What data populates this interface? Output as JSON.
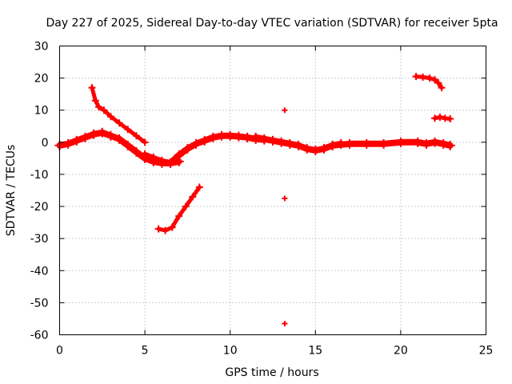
{
  "chart_data": {
    "type": "scatter",
    "title": "Day 227 of 2025, Sidereal Day-to-day VTEC variation (SDTVAR) for receiver 5pta",
    "xlabel": "GPS time / hours",
    "ylabel": "SDTVAR / TECUs",
    "xlim": [
      0,
      25
    ],
    "ylim": [
      -60,
      30
    ],
    "xticks": [
      0,
      5,
      10,
      15,
      20,
      25
    ],
    "yticks": [
      30,
      20,
      10,
      0,
      -10,
      -20,
      -30,
      -40,
      -50,
      -60
    ],
    "grid": true,
    "marker": "plus",
    "color": "#ff0000",
    "series": [
      {
        "name": "arc-main-0-4",
        "style": "band",
        "x": [
          0.0,
          0.5,
          1.0,
          1.5,
          2.0,
          2.5,
          3.0,
          3.5,
          4.0,
          4.5,
          5.0,
          5.5,
          6.0,
          6.5,
          7.0
        ],
        "y": [
          -1.0,
          -0.5,
          0.5,
          1.5,
          2.5,
          3.0,
          2.0,
          1.0,
          -1.0,
          -3.0,
          -5.0,
          -6.0,
          -6.5,
          -6.5,
          -6.0
        ]
      },
      {
        "name": "arc-rise-6-12",
        "style": "band",
        "x": [
          5.0,
          5.5,
          6.0,
          6.5,
          7.0,
          7.5,
          8.0,
          8.5,
          9.0,
          9.5,
          10.0,
          10.5,
          11.0,
          11.5,
          12.0
        ],
        "y": [
          -4.0,
          -5.0,
          -6.0,
          -6.5,
          -4.0,
          -2.0,
          -0.5,
          0.5,
          1.5,
          2.0,
          2.0,
          1.8,
          1.5,
          1.0,
          0.8
        ]
      },
      {
        "name": "arc-mid-12-16",
        "style": "band",
        "x": [
          11.5,
          12.0,
          12.5,
          13.0,
          13.5,
          14.0,
          14.5,
          15.0,
          15.5,
          16.0,
          16.5
        ],
        "y": [
          1.5,
          1.0,
          0.5,
          0.0,
          -0.5,
          -1.0,
          -2.0,
          -2.5,
          -2.0,
          -1.0,
          -0.5
        ]
      },
      {
        "name": "arc-late-16-23",
        "style": "band",
        "x": [
          16.0,
          17.0,
          18.0,
          19.0,
          20.0,
          21.0,
          21.5,
          22.0,
          22.5,
          22.9
        ],
        "y": [
          -1.0,
          -0.5,
          -0.5,
          -0.5,
          0.0,
          0.0,
          -0.5,
          0.0,
          -0.5,
          -1.0
        ]
      },
      {
        "name": "arc-desc-2-5",
        "style": "thick",
        "x": [
          1.9,
          2.1,
          2.3,
          2.6,
          3.0,
          3.5,
          4.0,
          4.5,
          5.0
        ],
        "y": [
          17.0,
          13.0,
          11.0,
          10.0,
          8.0,
          6.0,
          4.0,
          2.0,
          0.0
        ]
      },
      {
        "name": "arc-low-6-8",
        "style": "thick",
        "x": [
          5.8,
          6.2,
          6.6,
          7.0,
          7.4,
          7.8,
          8.2
        ],
        "y": [
          -27.0,
          -27.5,
          -26.5,
          -23.0,
          -20.0,
          -17.0,
          -14.0
        ]
      },
      {
        "name": "arc-high-21-22",
        "style": "thick",
        "x": [
          20.9,
          21.3,
          21.7,
          22.0,
          22.2,
          22.4
        ],
        "y": [
          20.5,
          20.3,
          20.0,
          19.5,
          18.5,
          17.0
        ]
      },
      {
        "name": "arc-short-22",
        "style": "thick",
        "x": [
          22.0,
          22.3,
          22.6,
          22.9
        ],
        "y": [
          7.5,
          7.8,
          7.5,
          7.3
        ]
      },
      {
        "name": "isolated-points",
        "style": "points",
        "x": [
          13.2,
          13.2,
          13.2
        ],
        "y": [
          10.0,
          -17.5,
          -56.5
        ]
      }
    ]
  }
}
